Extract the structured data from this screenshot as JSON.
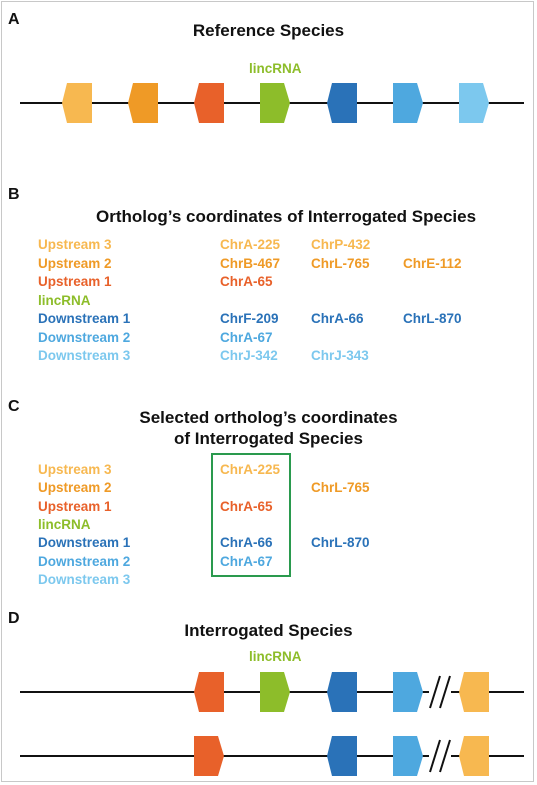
{
  "colors": {
    "up3": "#f7b850",
    "up2": "#ef9a26",
    "up1": "#e8612a",
    "linc": "#8dbd2a",
    "down1": "#2a72b8",
    "down2": "#4ea8df",
    "down3": "#7cc8ee",
    "line": "#111111",
    "box": "#2a9a4e"
  },
  "panel_a": {
    "letter": "A",
    "title": "Reference Species",
    "lincrna_label": "lincRNA",
    "genes": [
      {
        "id": "up3",
        "shape": "hex",
        "color": "#f7b850"
      },
      {
        "id": "up2",
        "shape": "hex",
        "color": "#ef9a26"
      },
      {
        "id": "up1",
        "shape": "hex",
        "color": "#e8612a"
      },
      {
        "id": "linc",
        "shape": "arrow",
        "color": "#8dbd2a"
      },
      {
        "id": "down1",
        "shape": "hex",
        "color": "#2a72b8"
      },
      {
        "id": "down2",
        "shape": "arrow",
        "color": "#4ea8df"
      },
      {
        "id": "down3",
        "shape": "arrow",
        "color": "#7cc8ee"
      }
    ]
  },
  "panel_b": {
    "letter": "B",
    "title": "Ortholog’s coordinates of Interrogated Species",
    "rows": [
      {
        "label": "Upstream 3",
        "color": "#f7b850",
        "coords": [
          "ChrA-225",
          "ChrP-432",
          ""
        ]
      },
      {
        "label": "Upstream 2",
        "color": "#ef9a26",
        "coords": [
          "ChrB-467",
          "ChrL-765",
          "ChrE-112"
        ]
      },
      {
        "label": "Upstream 1",
        "color": "#e8612a",
        "coords": [
          "ChrA-65",
          "",
          ""
        ]
      },
      {
        "label": "lincRNA",
        "color": "#8dbd2a",
        "coords": [
          "",
          "",
          ""
        ]
      },
      {
        "label": "Downstream 1",
        "color": "#2a72b8",
        "coords": [
          "ChrF-209",
          "ChrA-66",
          "ChrL-870"
        ]
      },
      {
        "label": "Downstream 2",
        "color": "#4ea8df",
        "coords": [
          "ChrA-67",
          "",
          ""
        ]
      },
      {
        "label": "Downstream 3",
        "color": "#7cc8ee",
        "coords": [
          "ChrJ-342",
          "ChrJ-343",
          ""
        ]
      }
    ]
  },
  "panel_c": {
    "letter": "C",
    "title_line1": "Selected ortholog’s coordinates",
    "title_line2": "of Interrogated Species",
    "rows": [
      {
        "label": "Upstream 3",
        "color": "#f7b850",
        "coords": [
          "ChrA-225",
          ""
        ]
      },
      {
        "label": "Upstream 2",
        "color": "#ef9a26",
        "coords": [
          "",
          "ChrL-765"
        ]
      },
      {
        "label": "Upstream 1",
        "color": "#e8612a",
        "coords": [
          "ChrA-65",
          ""
        ]
      },
      {
        "label": "lincRNA",
        "color": "#8dbd2a",
        "coords": [
          "",
          ""
        ]
      },
      {
        "label": "Downstream 1",
        "color": "#2a72b8",
        "coords": [
          "ChrA-66",
          "ChrL-870"
        ]
      },
      {
        "label": "Downstream 2",
        "color": "#4ea8df",
        "coords": [
          "ChrA-67",
          ""
        ]
      },
      {
        "label": "Downstream 3",
        "color": "#7cc8ee",
        "coords": [
          "",
          ""
        ]
      }
    ]
  },
  "panel_d": {
    "letter": "D",
    "title": "Interrogated Species",
    "lincrna_label": "lincRNA",
    "track1_genes": [
      {
        "id": "up1",
        "shape": "hex",
        "color": "#e8612a"
      },
      {
        "id": "linc",
        "shape": "arrow",
        "color": "#8dbd2a"
      },
      {
        "id": "down1",
        "shape": "hex",
        "color": "#2a72b8"
      },
      {
        "id": "down2",
        "shape": "arrow",
        "color": "#4ea8df"
      },
      {
        "id": "break",
        "shape": "break",
        "color": "#111111"
      },
      {
        "id": "up3",
        "shape": "hex",
        "color": "#f7b850"
      }
    ],
    "track2_genes": [
      {
        "id": "up1",
        "shape": "arrow",
        "color": "#e8612a"
      },
      {
        "id": "down1",
        "shape": "hex",
        "color": "#2a72b8"
      },
      {
        "id": "down2",
        "shape": "arrow",
        "color": "#4ea8df"
      },
      {
        "id": "break",
        "shape": "break",
        "color": "#111111"
      },
      {
        "id": "up3",
        "shape": "hex",
        "color": "#f7b850"
      }
    ]
  }
}
